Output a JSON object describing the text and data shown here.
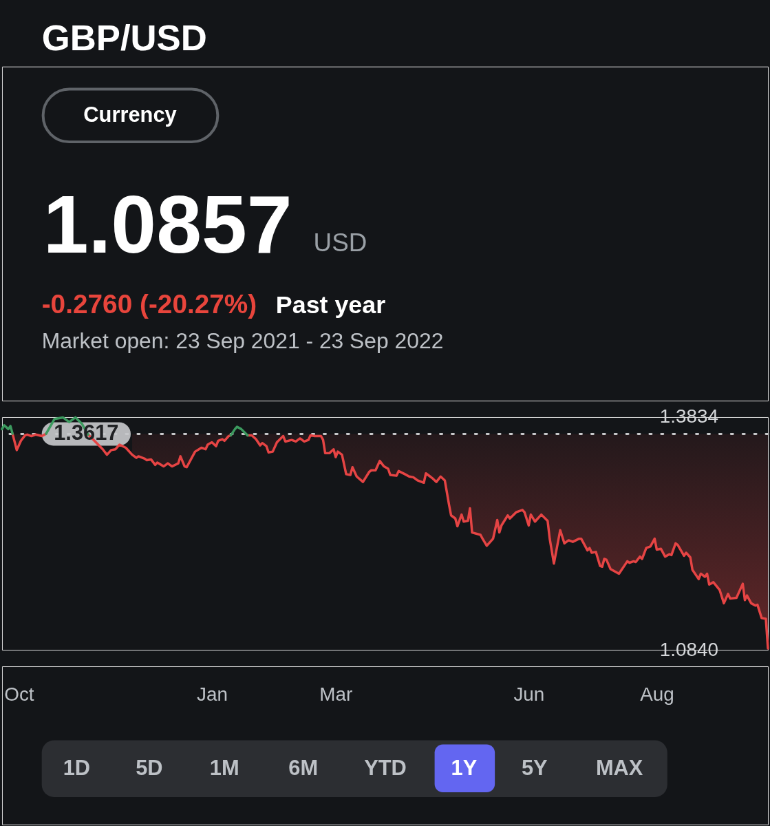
{
  "chart_data": {
    "type": "line",
    "title": "GBP/USD",
    "annotations": [
      "Currency",
      "1.0857",
      "USD",
      "-0.2760 (-20.27%)",
      "Past year",
      "Market open: 23 Sep 2021 - 23 Sep 2022",
      "1D",
      "5D",
      "1M",
      "6M",
      "YTD",
      "1Y",
      "5Y",
      "MAX"
    ],
    "x": [
      "2021-09-23",
      "2021-09-24",
      "2021-09-26",
      "2021-09-27",
      "2021-09-28",
      "2021-09-30",
      "2021-10-02",
      "2021-10-04",
      "2021-10-05",
      "2021-10-07",
      "2021-10-09",
      "2021-10-12",
      "2021-10-14",
      "2021-10-18",
      "2021-10-22",
      "2021-10-25",
      "2021-10-28",
      "2021-10-31",
      "2021-11-03",
      "2021-11-06",
      "2021-11-10",
      "2021-11-12",
      "2021-11-14",
      "2021-11-16",
      "2021-11-18",
      "2021-11-21",
      "2021-11-24",
      "2021-11-26",
      "2021-11-27",
      "2021-11-30",
      "2021-12-01",
      "2021-12-03",
      "2021-12-05",
      "2021-12-06",
      "2021-12-09",
      "2021-12-11",
      "2021-12-13",
      "2021-12-16",
      "2021-12-17",
      "2021-12-19",
      "2021-12-20",
      "2021-12-22",
      "2021-12-24",
      "2021-12-27",
      "2021-12-29",
      "2021-12-30",
      "2022-01-01",
      "2022-01-03",
      "2022-01-04",
      "2022-01-06",
      "2022-01-07",
      "2022-01-09",
      "2022-01-10",
      "2022-01-12",
      "2022-01-13",
      "2022-01-15",
      "2022-01-18",
      "2022-01-20",
      "2022-01-22",
      "2022-01-24",
      "2022-01-25",
      "2022-01-27",
      "2022-01-28",
      "2022-01-30",
      "2022-02-01",
      "2022-02-04",
      "2022-02-05",
      "2022-02-08",
      "2022-02-10",
      "2022-02-12",
      "2022-02-14",
      "2022-02-16",
      "2022-02-17",
      "2022-02-19",
      "2022-02-22",
      "2022-02-23",
      "2022-02-24",
      "2022-02-26",
      "2022-02-28",
      "2022-03-01",
      "2022-03-02",
      "2022-03-04",
      "2022-03-06",
      "2022-03-08",
      "2022-03-09",
      "2022-03-11",
      "2022-03-14",
      "2022-03-17",
      "2022-03-18",
      "2022-03-20",
      "2022-03-22",
      "2022-03-24",
      "2022-03-26",
      "2022-03-27",
      "2022-03-30",
      "2022-03-31",
      "2022-04-03",
      "2022-04-05",
      "2022-04-07",
      "2022-04-09",
      "2022-04-12",
      "2022-04-13",
      "2022-04-15",
      "2022-04-16",
      "2022-04-18",
      "2022-04-20",
      "2022-04-22",
      "2022-04-24",
      "2022-04-25",
      "2022-04-27",
      "2022-04-28",
      "2022-04-30",
      "2022-05-01",
      "2022-05-03",
      "2022-05-04",
      "2022-05-05",
      "2022-05-09",
      "2022-05-10",
      "2022-05-12",
      "2022-05-15",
      "2022-05-17",
      "2022-05-18",
      "2022-05-19",
      "2022-05-22",
      "2022-05-23",
      "2022-05-26",
      "2022-05-29",
      "2022-05-30",
      "2022-06-01",
      "2022-06-02",
      "2022-06-04",
      "2022-06-07",
      "2022-06-10",
      "2022-06-11",
      "2022-06-13",
      "2022-06-16",
      "2022-06-18",
      "2022-06-20",
      "2022-06-22",
      "2022-06-25",
      "2022-06-26",
      "2022-06-29",
      "2022-06-30",
      "2022-07-01",
      "2022-07-03",
      "2022-07-05",
      "2022-07-06",
      "2022-07-07",
      "2022-07-08",
      "2022-07-10",
      "2022-07-14",
      "2022-07-18",
      "2022-07-19",
      "2022-07-21",
      "2022-07-22",
      "2022-07-24",
      "2022-07-25",
      "2022-07-27",
      "2022-07-29",
      "2022-07-31",
      "2022-08-01",
      "2022-08-03",
      "2022-08-05",
      "2022-08-07",
      "2022-08-08",
      "2022-08-10",
      "2022-08-11",
      "2022-08-14",
      "2022-08-15",
      "2022-08-17",
      "2022-08-18",
      "2022-08-21",
      "2022-08-22",
      "2022-08-24",
      "2022-08-25",
      "2022-08-26",
      "2022-08-28",
      "2022-08-31",
      "2022-09-02",
      "2022-09-04",
      "2022-09-05",
      "2022-09-08",
      "2022-09-11",
      "2022-09-12",
      "2022-09-13",
      "2022-09-15",
      "2022-09-17",
      "2022-09-18",
      "2022-09-20",
      "2022-09-22",
      "2022-09-23"
    ],
    "series": [
      {
        "color": "#e64444",
        "values": [
          null,
          null,
          null,
          null,
          1.362,
          1.341,
          1.353,
          1.36,
          1.361,
          1.359,
          1.361,
          1.359,
          1.362,
          null,
          null,
          null,
          null,
          null,
          1.361,
          1.353,
          1.342,
          1.335,
          1.341,
          1.342,
          1.348,
          1.344,
          1.335,
          1.331,
          1.333,
          1.33,
          1.328,
          1.329,
          1.322,
          1.325,
          1.32,
          1.324,
          1.32,
          1.324,
          1.333,
          1.32,
          1.319,
          1.329,
          1.339,
          1.344,
          1.342,
          1.348,
          1.351,
          1.346,
          1.353,
          1.355,
          1.353,
          1.359,
          1.36,
          null,
          null,
          null,
          1.36,
          1.36,
          1.355,
          1.347,
          1.35,
          1.346,
          1.338,
          1.339,
          1.351,
          1.359,
          1.352,
          1.354,
          1.352,
          1.356,
          1.352,
          1.354,
          1.36,
          1.359,
          1.359,
          1.354,
          1.337,
          1.337,
          1.342,
          1.332,
          1.339,
          1.335,
          1.31,
          1.309,
          1.319,
          1.307,
          1.3,
          1.313,
          1.315,
          1.315,
          1.327,
          1.32,
          1.317,
          1.309,
          1.308,
          1.314,
          1.31,
          1.307,
          1.306,
          1.302,
          1.299,
          1.311,
          1.307,
          1.305,
          1.3,
          1.307,
          1.302,
          1.271,
          1.257,
          1.253,
          1.243,
          1.258,
          1.249,
          1.25,
          1.266,
          1.235,
          1.232,
          1.227,
          1.218,
          1.227,
          1.251,
          1.235,
          1.244,
          1.257,
          1.253,
          1.261,
          1.264,
          1.261,
          1.244,
          1.258,
          1.249,
          1.258,
          1.25,
          1.227,
          1.195,
          1.238,
          1.221,
          1.225,
          1.223,
          1.227,
          1.227,
          1.212,
          1.215,
          1.209,
          1.21,
          1.192,
          1.191,
          1.201,
          1.2,
          1.188,
          1.182,
          1.198,
          1.196,
          1.198,
          1.197,
          1.204,
          1.201,
          1.215,
          1.217,
          1.227,
          1.213,
          1.214,
          1.204,
          1.207,
          1.206,
          1.221,
          1.219,
          1.205,
          1.209,
          1.203,
          1.187,
          1.175,
          1.182,
          1.178,
          1.182,
          1.168,
          1.171,
          1.161,
          1.144,
          1.156,
          1.15,
          1.151,
          1.169,
          1.148,
          1.154,
          1.144,
          1.141,
          1.142,
          1.125,
          1.124,
          1.086
        ],
        "lower": [
          null,
          null,
          null,
          null,
          1.362,
          1.341,
          1.353,
          1.36,
          1.361,
          1.359,
          1.361,
          1.359,
          null,
          null,
          null,
          null,
          null,
          null,
          null,
          null,
          null,
          null,
          null,
          null,
          null,
          null,
          1.335,
          1.331,
          1.333,
          1.33,
          1.328,
          1.329,
          1.322,
          1.325,
          1.32,
          1.324,
          1.32,
          1.324,
          1.333,
          1.32,
          1.319,
          1.329,
          1.339,
          1.344,
          1.342,
          1.348,
          1.351,
          1.346,
          1.353,
          1.355,
          1.353,
          1.359,
          1.36,
          null,
          null,
          null,
          1.36,
          1.36,
          1.355,
          1.347,
          1.35,
          1.346,
          1.338,
          1.339,
          1.351,
          1.359,
          1.352,
          1.354,
          1.352,
          1.356,
          1.352,
          1.354,
          1.36,
          1.359,
          1.359,
          1.354,
          1.337,
          1.337,
          1.342,
          1.332,
          1.339,
          1.335,
          1.31,
          1.309,
          1.319,
          1.307,
          1.3,
          1.313,
          1.315,
          1.315,
          1.327,
          1.32,
          1.317,
          1.309,
          1.308,
          1.314,
          1.31,
          1.307,
          1.306,
          1.302,
          1.299,
          1.311,
          1.307,
          1.305,
          1.3,
          1.307,
          1.302,
          1.271,
          1.257,
          1.253,
          1.243,
          1.258,
          1.249,
          1.25,
          1.266,
          1.235,
          1.232,
          1.227,
          1.218,
          1.227,
          1.251,
          1.235,
          1.244,
          1.257,
          1.253,
          1.261,
          1.264,
          1.261,
          1.244,
          1.258,
          1.249,
          1.258,
          1.25,
          1.227,
          1.195,
          1.238,
          1.221,
          1.225,
          1.223,
          1.227,
          1.227,
          1.212,
          1.215,
          1.209,
          1.21,
          1.192,
          1.191,
          1.201,
          1.2,
          1.188,
          1.182,
          1.198,
          1.196,
          1.198,
          1.197,
          1.204,
          1.201,
          1.215,
          1.217,
          1.227,
          1.213,
          1.214,
          1.204,
          1.207,
          1.206,
          1.221,
          1.219,
          1.205,
          1.209,
          1.203,
          1.187,
          1.175,
          1.182,
          1.178,
          1.182,
          1.168,
          1.171,
          1.161,
          1.144,
          1.156,
          1.15,
          1.151,
          1.169,
          1.148,
          1.154,
          1.144,
          1.141,
          1.142,
          1.125,
          1.124,
          1.086
        ],
        "upper": [
          null,
          null,
          null,
          null,
          1.3617,
          1.3617,
          1.3617,
          1.3617,
          1.3617,
          1.3617,
          1.3617,
          1.3617,
          null,
          null,
          null,
          null,
          null,
          null,
          null,
          null,
          null,
          null,
          null,
          null,
          null,
          null,
          1.3617,
          1.3617,
          1.3617,
          1.3617,
          1.3617,
          1.3617,
          1.3617,
          1.3617,
          1.3617,
          1.3617,
          1.3617,
          1.3617,
          1.3617,
          1.3617,
          1.3617,
          1.3617,
          1.3617,
          1.3617,
          1.3617,
          1.3617,
          1.3617,
          1.3617,
          1.3617,
          1.3617,
          1.3617,
          1.3617,
          1.3617,
          null,
          null,
          null,
          1.3617,
          1.3617,
          1.3617,
          1.3617,
          1.3617,
          1.3617,
          1.3617,
          1.3617,
          1.3617,
          1.3617,
          1.3617,
          1.3617,
          1.3617,
          1.3617,
          1.3617,
          1.3617,
          1.3617,
          1.3617,
          1.3617,
          1.3617,
          1.3617,
          1.3617,
          1.3617,
          1.3617,
          1.3617,
          1.3617,
          1.3617,
          1.3617,
          1.3617,
          1.3617,
          1.3617,
          1.3617,
          1.3617,
          1.3617,
          1.3617,
          1.3617,
          1.3617,
          1.3617,
          1.3617,
          1.3617,
          1.3617,
          1.3617,
          1.3617,
          1.3617,
          1.3617,
          1.3617,
          1.3617,
          1.3617,
          1.3617,
          1.3617,
          1.3617,
          1.3617,
          1.3617,
          1.3617,
          1.3617,
          1.3617,
          1.3617,
          1.3617,
          1.3617,
          1.3617,
          1.3617,
          1.3617,
          1.3617,
          1.3617,
          1.3617,
          1.3617,
          1.3617,
          1.3617,
          1.3617,
          1.3617,
          1.3617,
          1.3617,
          1.3617,
          1.3617,
          1.3617,
          1.3617,
          1.3617,
          1.3617,
          1.3617,
          1.3617,
          1.3617,
          1.3617,
          1.3617,
          1.3617,
          1.3617,
          1.3617,
          1.3617,
          1.3617,
          1.3617,
          1.3617,
          1.3617,
          1.3617,
          1.3617,
          1.3617,
          1.3617,
          1.3617,
          1.3617,
          1.3617,
          1.3617,
          1.3617,
          1.3617,
          1.3617,
          1.3617,
          1.3617,
          1.3617,
          1.3617,
          1.3617,
          1.3617,
          1.3617,
          1.3617,
          1.3617,
          1.3617,
          1.3617,
          1.3617,
          1.3617,
          1.3617,
          1.3617,
          1.3617,
          1.3617,
          1.3617,
          1.3617,
          1.3617,
          1.3617,
          1.3617,
          1.3617,
          1.3617,
          1.3617,
          1.3617,
          1.3617,
          1.3617,
          1.3617,
          1.3617,
          1.3617,
          1.3617,
          1.3617
        ]
      },
      {
        "color": "#3c9a5f",
        "values": [
          1.368,
          1.373,
          1.368,
          1.372,
          1.362,
          null,
          null,
          null,
          null,
          null,
          null,
          null,
          1.362,
          1.381,
          1.383,
          1.377,
          1.383,
          1.375,
          1.361,
          null,
          null,
          null,
          null,
          null,
          null,
          null,
          null,
          null,
          null,
          null,
          null,
          null,
          null,
          null,
          null,
          null,
          null,
          null,
          null,
          null,
          null,
          null,
          null,
          null,
          null,
          null,
          null,
          null,
          null,
          null,
          null,
          null,
          1.36,
          1.368,
          1.371,
          1.368,
          1.36,
          null,
          null,
          null,
          null,
          null,
          null,
          null,
          null,
          null,
          null,
          null,
          null,
          null,
          null,
          null,
          null,
          null,
          null,
          null,
          null,
          null,
          null,
          null,
          null,
          null,
          null,
          null,
          null,
          null,
          null,
          null,
          null,
          null,
          null,
          null,
          null,
          null,
          null,
          null,
          null,
          null,
          null,
          null,
          null,
          null,
          null,
          null,
          null,
          null,
          null,
          null,
          null,
          null,
          null,
          null,
          null,
          null,
          null,
          null,
          null,
          null,
          null,
          null,
          null,
          null,
          null,
          null,
          null,
          null,
          null,
          null,
          null,
          null,
          null,
          null,
          null,
          null,
          null,
          null,
          null,
          null,
          null,
          null,
          null,
          null,
          null,
          null,
          null,
          null,
          null,
          null,
          null,
          null,
          null,
          null,
          null,
          null,
          null,
          null,
          null,
          null,
          null,
          null,
          null,
          null,
          null,
          null,
          null,
          null,
          null,
          null,
          null,
          null,
          null,
          null,
          null,
          null,
          null,
          null,
          null,
          null,
          null,
          null,
          null,
          null,
          null,
          null,
          null,
          null,
          null,
          null,
          null,
          null,
          null
        ]
      }
    ],
    "xlim": [
      "2021-09-23",
      "2022-09-23"
    ],
    "xticks": [
      {
        "value": "2021-10-01",
        "label": "Oct"
      },
      {
        "value": "2022-01-01",
        "label": "Jan"
      },
      {
        "value": "2022-03-01",
        "label": "Mar"
      },
      {
        "value": "2022-06-01",
        "label": "Jun"
      },
      {
        "value": "2022-08-01",
        "label": "Aug"
      }
    ],
    "ylim": [
      1.084,
      1.3834
    ],
    "yticks": [
      1.3834,
      {
        "value": 1.084,
        "label": "1.0840"
      }
    ],
    "ref_lines": [
      {
        "axis": "y",
        "value": 1.3617,
        "label": "1.3617",
        "color": "#c8c9cb",
        "line_style": "dotted"
      }
    ]
  }
}
